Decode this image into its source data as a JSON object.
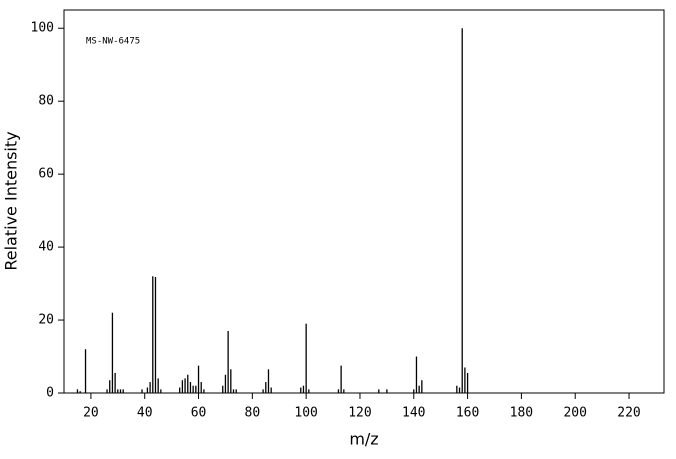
{
  "chart_data": {
    "type": "stem",
    "annotation": "MS-NW-6475",
    "xlabel": "m/z",
    "ylabel": "Relative Intensity",
    "color": "#000000",
    "x": [
      15,
      16,
      18,
      26,
      27,
      28,
      29,
      30,
      31,
      32,
      39,
      41,
      42,
      43,
      44,
      45,
      46,
      53,
      54,
      55,
      56,
      57,
      58,
      59,
      60,
      61,
      62,
      69,
      70,
      71,
      72,
      73,
      74,
      84,
      85,
      86,
      87,
      98,
      99,
      100,
      101,
      112,
      113,
      114,
      127,
      130,
      140,
      141,
      142,
      143,
      156,
      157,
      158,
      159,
      160
    ],
    "values": [
      1,
      0.5,
      12,
      1,
      3.5,
      22,
      5.5,
      1,
      1,
      1,
      1,
      1.5,
      3,
      32,
      31.8,
      4,
      1,
      1.5,
      3.5,
      4,
      5,
      3,
      2,
      2,
      7.5,
      3,
      1,
      2,
      5,
      17,
      6.5,
      1,
      1,
      1,
      3,
      6.5,
      1.5,
      1.5,
      2,
      19,
      1,
      1,
      7.5,
      1,
      1,
      1,
      1,
      10,
      2,
      3.5,
      2,
      1.5,
      100,
      7,
      5.5
    ],
    "xlim": [
      10,
      233
    ],
    "ylim": [
      0,
      105
    ],
    "xticks": [
      20,
      40,
      60,
      80,
      100,
      120,
      140,
      160,
      180,
      200,
      220
    ],
    "yticks": [
      0,
      20,
      40,
      60,
      80,
      100
    ]
  }
}
